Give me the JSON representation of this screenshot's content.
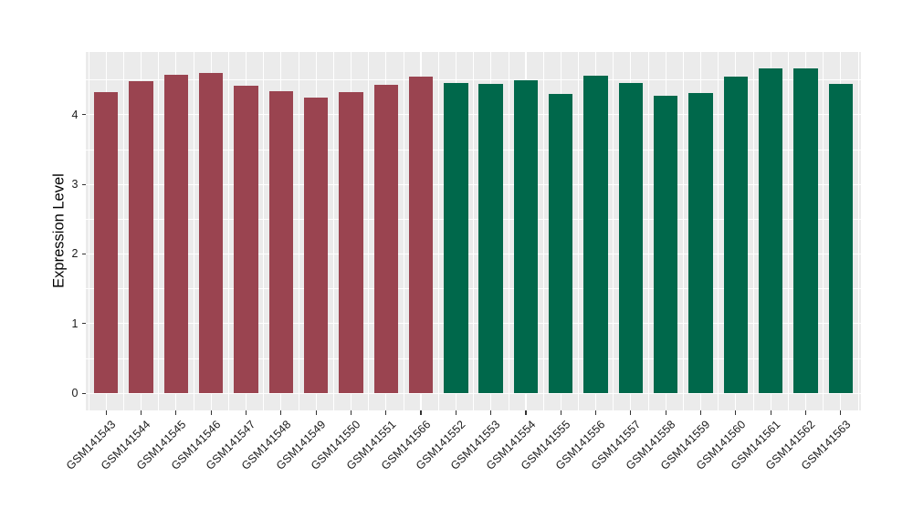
{
  "figure": {
    "background_color": "#FFFFFF",
    "panel_color": "#EBEBEB",
    "grid_color": "#FFFFFF",
    "axis_text_color": "#1A1A1A",
    "tick_mark_color": "#333333"
  },
  "chart_data": {
    "type": "bar",
    "title": "",
    "xlabel": "",
    "ylabel": "Expression Level",
    "categories": [
      "GSM141543",
      "GSM141544",
      "GSM141545",
      "GSM141546",
      "GSM141547",
      "GSM141548",
      "GSM141549",
      "GSM141550",
      "GSM141551",
      "GSM141566",
      "GSM141552",
      "GSM141553",
      "GSM141554",
      "GSM141555",
      "GSM141556",
      "GSM141557",
      "GSM141558",
      "GSM141559",
      "GSM141560",
      "GSM141561",
      "GSM141562",
      "GSM141563"
    ],
    "values": [
      4.33,
      4.48,
      4.57,
      4.6,
      4.42,
      4.34,
      4.25,
      4.32,
      4.43,
      4.54,
      4.45,
      4.44,
      4.5,
      4.3,
      4.56,
      4.46,
      4.27,
      4.31,
      4.55,
      4.66,
      4.66,
      4.44
    ],
    "groups": [
      0,
      0,
      0,
      0,
      0,
      0,
      0,
      0,
      0,
      0,
      1,
      1,
      1,
      1,
      1,
      1,
      1,
      1,
      1,
      1,
      1,
      1
    ],
    "group_colors": [
      "#9A4450",
      "#00684B"
    ],
    "yticks": [
      "0",
      "1",
      "2",
      "3",
      "4"
    ],
    "ytick_values": [
      0,
      1,
      2,
      3,
      4
    ],
    "minor_ytick_values": [
      0.5,
      1.5,
      2.5,
      3.5,
      4.5
    ],
    "ylim": [
      -0.245,
      4.9
    ],
    "grid": "major-and-minor",
    "legend": "none",
    "bar_width_fraction": 0.69
  }
}
